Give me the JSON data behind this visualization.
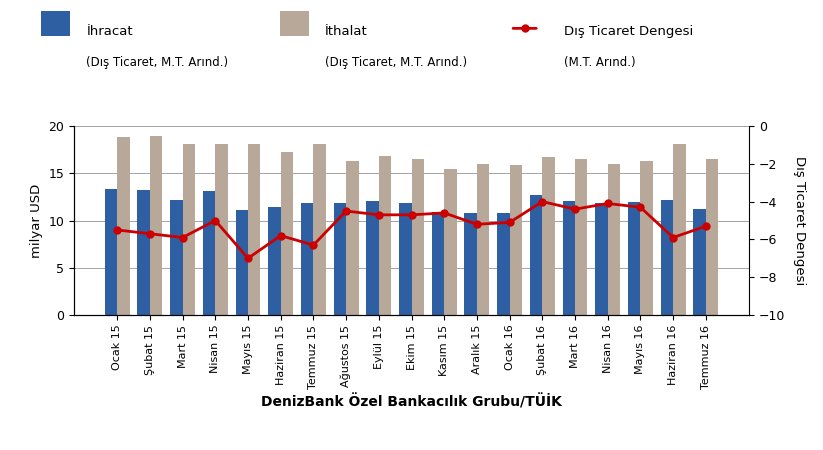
{
  "categories": [
    "Ocak 15",
    "Şubat 15",
    "Mart 15",
    "Nisan 15",
    "Mayıs 15",
    "Haziran 15",
    "Temmuz 15",
    "Ağustos 15",
    "Eylül 15",
    "Ekim 15",
    "Kasım 15",
    "Aralık 15",
    "Ocak 16",
    "Şubat 16",
    "Mart 16",
    "Nisan 16",
    "Mayıs 16",
    "Haziran 16",
    "Temmuz 16"
  ],
  "ihracat": [
    13.3,
    13.2,
    12.2,
    13.1,
    11.1,
    11.4,
    11.8,
    11.8,
    12.1,
    11.8,
    10.9,
    10.8,
    10.8,
    12.7,
    12.1,
    11.9,
    12.0,
    12.2,
    11.2
  ],
  "ithalat": [
    18.8,
    18.9,
    18.1,
    18.1,
    18.1,
    17.2,
    18.1,
    16.3,
    16.8,
    16.5,
    15.5,
    16.0,
    15.9,
    16.7,
    16.5,
    16.0,
    16.3,
    18.1,
    16.5
  ],
  "dis_ticaret": [
    -5.5,
    -5.7,
    -5.9,
    -5.0,
    -7.0,
    -5.8,
    -6.3,
    -4.5,
    -4.7,
    -4.7,
    -4.6,
    -5.2,
    -5.1,
    -4.0,
    -4.4,
    -4.1,
    -4.3,
    -5.9,
    -5.3
  ],
  "ihracat_color": "#2E5FA3",
  "ithalat_color": "#B8A89A",
  "dis_ticaret_color": "#CC0000",
  "ylabel_left": "milyar USD",
  "ylabel_right": "Dış Ticaret Dengesi",
  "xlabel": "DenizBank Özel Bankacılık Grubu/TÜİK",
  "ylim_left": [
    0,
    20
  ],
  "ylim_right": [
    -10,
    0
  ],
  "yticks_left": [
    0,
    5,
    10,
    15,
    20
  ],
  "yticks_right": [
    -10,
    -8,
    -6,
    -4,
    -2,
    0
  ],
  "legend_ihracat": "İhracat",
  "legend_ithalat": "İthalat",
  "legend_dis": "Dış Ticaret Dengesi",
  "legend_sub_ihracat": "(Dış Ticaret, M.T. Arınd.)",
  "legend_sub_ithalat": "(Dış Ticaret, M.T. Arınd.)",
  "legend_sub_dis": "(M.T. Arınd.)",
  "background_color": "#FFFFFF"
}
